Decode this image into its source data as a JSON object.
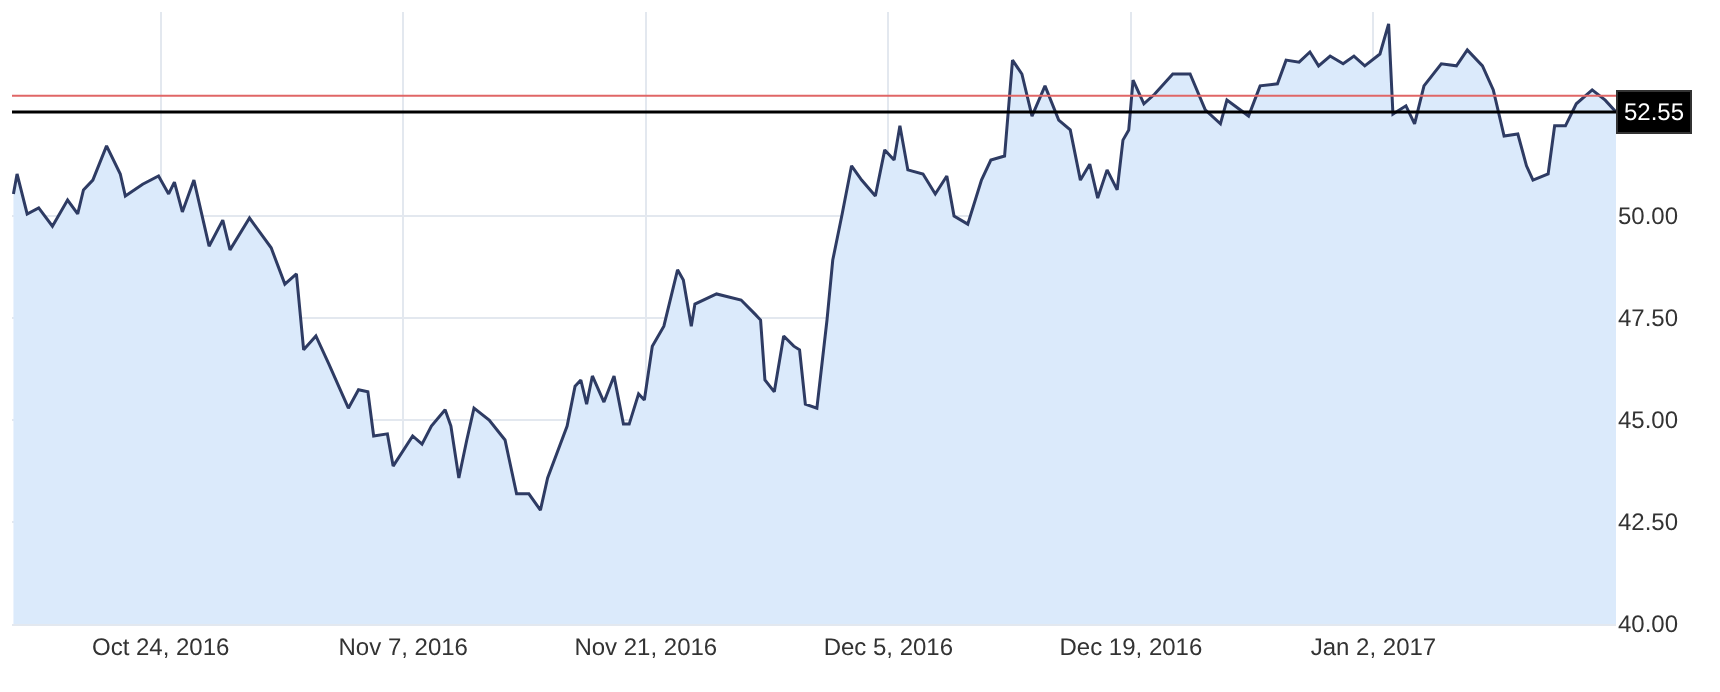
{
  "chart_data": {
    "type": "area",
    "x": [
      "2016-10-15T12:00",
      "2016-10-15T17:00",
      "2016-10-16T07:00",
      "2016-10-16T23:00",
      "2016-10-17T18:00",
      "2016-10-18T15:00",
      "2016-10-19T05:00",
      "2016-10-19T13:00",
      "2016-10-20T02:00",
      "2016-10-20T21:00",
      "2016-10-21T16:00",
      "2016-10-21T23:00",
      "2016-10-22T23:00",
      "2016-10-23T21:00",
      "2016-10-24T11:00",
      "2016-10-24T19:00",
      "2016-10-25T06:00",
      "2016-10-25T22:00",
      "2016-10-26T19:00",
      "2016-10-27T14:00",
      "2016-10-28T00:00",
      "2016-10-29T03:00",
      "2016-10-30T09:00",
      "2016-10-31T04:00",
      "2016-10-31T20:00",
      "2016-11-01T06:00",
      "2016-11-01T23:00",
      "2016-11-02T17:00",
      "2016-11-03T20:00",
      "2016-11-04T10:00",
      "2016-11-04T23:00",
      "2016-11-05T07:00",
      "2016-11-06T02:00",
      "2016-11-06T10:00",
      "2016-11-07T13:00",
      "2016-11-08T02:00",
      "2016-11-08T15:00",
      "2016-11-09T10:00",
      "2016-11-09T18:00",
      "2016-11-10T05:00",
      "2016-11-10T16:00",
      "2016-11-11T02:00",
      "2016-11-11T23:00",
      "2016-11-12T21:00",
      "2016-11-13T13:00",
      "2016-11-14T06:00",
      "2016-11-14T22:00",
      "2016-11-15T08:00",
      "2016-11-16T11:00",
      "2016-11-16T22:00",
      "2016-11-17T06:00",
      "2016-11-17T14:00",
      "2016-11-17T22:00",
      "2016-11-18T14:00",
      "2016-11-19T04:00",
      "2016-11-19T17:00",
      "2016-11-20T01:00",
      "2016-11-20T14:00",
      "2016-11-20T22:00",
      "2016-11-21T09:00",
      "2016-11-22T01:00",
      "2016-11-22T20:00",
      "2016-11-23T04:00",
      "2016-11-23T15:00",
      "2016-11-23T20:00",
      "2016-11-25T02:00",
      "2016-11-26T12:00",
      "2016-11-27T07:00",
      "2016-11-27T15:00",
      "2016-11-27T21:00",
      "2016-11-28T10:00",
      "2016-11-28T23:00",
      "2016-11-29T13:00",
      "2016-11-29T21:00",
      "2016-11-30T05:00",
      "2016-11-30T21:00",
      "2016-12-01T11:00",
      "2016-12-01T19:00",
      "2016-12-02T08:00",
      "2016-12-02T21:00",
      "2016-12-03T11:00",
      "2016-12-04T06:00",
      "2016-12-04T19:00",
      "2016-12-05T08:00",
      "2016-12-05T16:00",
      "2016-12-06T03:00",
      "2016-12-07T00:00",
      "2016-12-07T17:00",
      "2016-12-08T09:00",
      "2016-12-08T19:00",
      "2016-12-09T14:00",
      "2016-12-10T09:00",
      "2016-12-10T22:00",
      "2016-12-11T17:00",
      "2016-12-12T04:00",
      "2016-12-12T17:00",
      "2016-12-13T07:00",
      "2016-12-14T01:00",
      "2016-12-14T20:00",
      "2016-12-15T12:00",
      "2016-12-16T02:00",
      "2016-12-16T15:00",
      "2016-12-17T02:00",
      "2016-12-17T15:00",
      "2016-12-18T05:00",
      "2016-12-18T13:00",
      "2016-12-18T21:00",
      "2016-12-19T03:00",
      "2016-12-19T18:00",
      "2016-12-20T09:00",
      "2016-12-21T10:00",
      "2016-12-22T10:00",
      "2016-12-23T07:00",
      "2016-12-24T04:00",
      "2016-12-24T13:00",
      "2016-12-25T19:00",
      "2016-12-26T11:00",
      "2016-12-27T11:00",
      "2016-12-27T23:00",
      "2016-12-28T17:00",
      "2016-12-29T08:00",
      "2016-12-29T20:00",
      "2016-12-30T12:00",
      "2016-12-31T06:00",
      "2016-12-31T21:00",
      "2017-01-01T12:00",
      "2017-01-02T09:00",
      "2017-01-02T21:00",
      "2017-01-03T03:00",
      "2017-01-03T21:00",
      "2017-01-04T09:00",
      "2017-01-04T22:00",
      "2017-01-05T22:00",
      "2017-01-06T19:00",
      "2017-01-07T10:00",
      "2017-01-08T07:00",
      "2017-01-08T22:00",
      "2017-01-09T13:00",
      "2017-01-10T08:00",
      "2017-01-10T20:00",
      "2017-01-11T05:00",
      "2017-01-12T02:00",
      "2017-01-12T11:00",
      "2017-01-13T02:00",
      "2017-01-13T17:00",
      "2017-01-14T15:00",
      "2017-01-15T09:00",
      "2017-01-16T00:00"
    ],
    "series": [
      {
        "color": "#2e3b63",
        "values": [
          50.54,
          51.03,
          50.05,
          50.2,
          49.75,
          50.39,
          50.05,
          50.64,
          50.88,
          51.72,
          51.03,
          50.49,
          50.78,
          50.98,
          50.54,
          50.83,
          50.1,
          50.88,
          49.26,
          49.9,
          49.17,
          49.95,
          49.22,
          48.33,
          48.58,
          46.72,
          47.06,
          46.37,
          45.29,
          45.74,
          45.69,
          44.61,
          44.66,
          43.87,
          44.61,
          44.41,
          44.85,
          45.25,
          44.85,
          43.58,
          44.51,
          45.29,
          45.0,
          44.51,
          43.19,
          43.19,
          42.79,
          43.58,
          44.85,
          45.83,
          45.98,
          45.39,
          46.08,
          45.44,
          46.08,
          44.9,
          44.9,
          45.64,
          45.49,
          46.81,
          47.3,
          48.68,
          48.43,
          47.3,
          47.84,
          48.09,
          47.94,
          47.6,
          47.45,
          45.98,
          45.69,
          47.06,
          46.81,
          46.72,
          45.39,
          45.29,
          47.45,
          48.92,
          50.05,
          51.23,
          50.88,
          50.49,
          51.62,
          51.37,
          52.21,
          51.13,
          51.03,
          50.54,
          50.98,
          50.0,
          49.8,
          50.88,
          51.37,
          51.47,
          53.82,
          53.48,
          52.45,
          53.19,
          52.35,
          52.11,
          50.88,
          51.27,
          50.44,
          51.13,
          50.64,
          51.86,
          52.11,
          53.33,
          52.75,
          52.99,
          53.48,
          53.48,
          52.6,
          52.26,
          52.84,
          52.45,
          53.19,
          53.24,
          53.82,
          53.77,
          54.02,
          53.68,
          53.92,
          53.73,
          53.92,
          53.68,
          53.97,
          54.71,
          52.5,
          52.7,
          52.26,
          53.19,
          53.73,
          53.68,
          54.07,
          53.68,
          53.09,
          51.96,
          52.01,
          51.23,
          50.88,
          51.03,
          52.21,
          52.21,
          52.75,
          53.09,
          52.84,
          52.55
        ]
      }
    ],
    "xlim": [
      "2016-10-15T10:00",
      "2017-01-16T00:00"
    ],
    "xticks": [
      {
        "value": "2016-10-24",
        "label": "Oct 24, 2016"
      },
      {
        "value": "2016-11-07",
        "label": "Nov 7, 2016"
      },
      {
        "value": "2016-11-21",
        "label": "Nov 21, 2016"
      },
      {
        "value": "2016-12-05",
        "label": "Dec 5, 2016"
      },
      {
        "value": "2016-12-19",
        "label": "Dec 19, 2016"
      },
      {
        "value": "2017-01-02",
        "label": "Jan 2, 2017"
      }
    ],
    "ylim": [
      40,
      55
    ],
    "yticks": [
      {
        "value": 40,
        "label": "40.00"
      },
      {
        "value": 42.5,
        "label": "42.50"
      },
      {
        "value": 45,
        "label": "45.00"
      },
      {
        "value": 47.5,
        "label": "47.50"
      },
      {
        "value": 50,
        "label": "50.00"
      }
    ],
    "ref_lines": [
      {
        "axis": "y",
        "value": 52.95,
        "color": "#e06666"
      },
      {
        "axis": "y",
        "value": 52.55,
        "label": "52.55",
        "color": "#000000"
      }
    ],
    "grid": true
  }
}
